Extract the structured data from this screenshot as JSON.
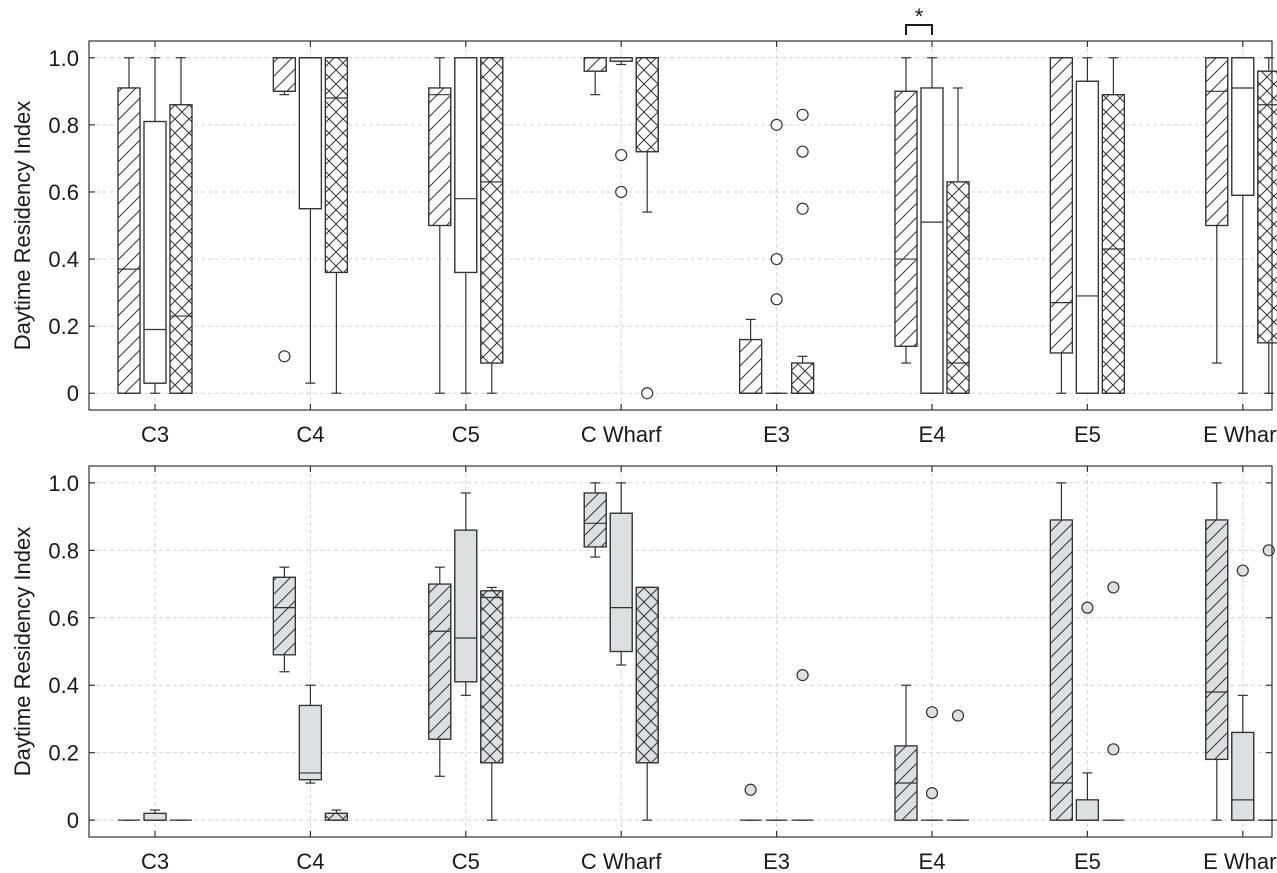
{
  "chart_data": [
    {
      "type": "box",
      "panel": "top",
      "fill": "#ffffff",
      "ylabel": "Daytime Residency Index",
      "ylim": [
        -0.05,
        1.05
      ],
      "yticks": [
        0,
        0.2,
        0.4,
        0.6,
        0.8,
        1.0
      ],
      "ytick_labels": [
        "0",
        "0.2",
        "0.4",
        "0.6",
        "0.8",
        "1.0"
      ],
      "categories": [
        "C3",
        "C4",
        "C5",
        "C Wharf",
        "E3",
        "E4",
        "E5",
        "E Wharf"
      ],
      "grid": true,
      "series_patterns": [
        "diagonal-hatch",
        "plain",
        "crosshatch"
      ],
      "significance": [
        {
          "category": "E4",
          "from_series": 0,
          "to_series": 1,
          "label": "*"
        }
      ],
      "groups": [
        {
          "category": "C3",
          "boxes": [
            {
              "whislo": 0,
              "q1": 0,
              "med": 0.37,
              "q3": 0.91,
              "whishi": 1.0,
              "fliers": []
            },
            {
              "whislo": 0,
              "q1": 0.03,
              "med": 0.19,
              "q3": 0.81,
              "whishi": 1.0,
              "fliers": []
            },
            {
              "whislo": 0,
              "q1": 0,
              "med": 0.23,
              "q3": 0.86,
              "whishi": 1.0,
              "fliers": []
            }
          ]
        },
        {
          "category": "C4",
          "boxes": [
            {
              "whislo": 0.89,
              "q1": 0.9,
              "med": 0.9,
              "q3": 1.0,
              "whishi": 1.0,
              "fliers": [
                0.11
              ]
            },
            {
              "whislo": 0.03,
              "q1": 0.55,
              "med": 1.0,
              "q3": 1.0,
              "whishi": 1.0,
              "fliers": []
            },
            {
              "whislo": 0,
              "q1": 0.36,
              "med": 0.88,
              "q3": 1.0,
              "whishi": 1.0,
              "fliers": []
            }
          ]
        },
        {
          "category": "C5",
          "boxes": [
            {
              "whislo": 0,
              "q1": 0.5,
              "med": 0.89,
              "q3": 0.91,
              "whishi": 1.0,
              "fliers": []
            },
            {
              "whislo": 0,
              "q1": 0.36,
              "med": 0.58,
              "q3": 1.0,
              "whishi": 1.0,
              "fliers": []
            },
            {
              "whislo": 0,
              "q1": 0.09,
              "med": 0.63,
              "q3": 1.0,
              "whishi": 1.0,
              "fliers": []
            }
          ]
        },
        {
          "category": "C Wharf",
          "boxes": [
            {
              "whislo": 0.89,
              "q1": 0.96,
              "med": 1.0,
              "q3": 1.0,
              "whishi": 1.0,
              "fliers": []
            },
            {
              "whislo": 0.98,
              "q1": 0.99,
              "med": 0.99,
              "q3": 1.0,
              "whishi": 1.0,
              "fliers": [
                0.71,
                0.6
              ]
            },
            {
              "whislo": 0.54,
              "q1": 0.72,
              "med": 1.0,
              "q3": 1.0,
              "whishi": 1.0,
              "fliers": [
                0
              ]
            }
          ]
        },
        {
          "category": "E3",
          "boxes": [
            {
              "whislo": 0,
              "q1": 0,
              "med": 0,
              "q3": 0.16,
              "whishi": 0.22,
              "fliers": []
            },
            {
              "whislo": 0,
              "q1": 0,
              "med": 0,
              "q3": 0,
              "whishi": 0,
              "fliers": [
                0.8,
                0.4,
                0.28
              ]
            },
            {
              "whislo": 0,
              "q1": 0,
              "med": 0,
              "q3": 0.09,
              "whishi": 0.11,
              "fliers": [
                0.83,
                0.72,
                0.55
              ]
            }
          ]
        },
        {
          "category": "E4",
          "boxes": [
            {
              "whislo": 0.09,
              "q1": 0.14,
              "med": 0.4,
              "q3": 0.9,
              "whishi": 1.0,
              "fliers": []
            },
            {
              "whislo": 0,
              "q1": 0,
              "med": 0.51,
              "q3": 0.91,
              "whishi": 1.0,
              "fliers": []
            },
            {
              "whislo": 0,
              "q1": 0,
              "med": 0.09,
              "q3": 0.63,
              "whishi": 0.91,
              "fliers": []
            }
          ]
        },
        {
          "category": "E5",
          "boxes": [
            {
              "whislo": 0,
              "q1": 0.12,
              "med": 0.27,
              "q3": 1.0,
              "whishi": 1.0,
              "fliers": []
            },
            {
              "whislo": 0,
              "q1": 0,
              "med": 0.29,
              "q3": 0.93,
              "whishi": 1.0,
              "fliers": []
            },
            {
              "whislo": 0,
              "q1": 0,
              "med": 0.43,
              "q3": 0.89,
              "whishi": 1.0,
              "fliers": []
            }
          ]
        },
        {
          "category": "E Wharf",
          "boxes": [
            {
              "whislo": 0.09,
              "q1": 0.5,
              "med": 0.9,
              "q3": 1.0,
              "whishi": 1.0,
              "fliers": []
            },
            {
              "whislo": 0,
              "q1": 0.59,
              "med": 0.91,
              "q3": 1.0,
              "whishi": 1.0,
              "fliers": []
            },
            {
              "whislo": 0,
              "q1": 0.15,
              "med": 0.86,
              "q3": 0.96,
              "whishi": 1.0,
              "fliers": []
            }
          ]
        }
      ]
    },
    {
      "type": "box",
      "panel": "bottom",
      "fill": "#dddfe2",
      "ylabel": "Daytime Residency Index",
      "ylim": [
        -0.05,
        1.05
      ],
      "yticks": [
        0,
        0.2,
        0.4,
        0.6,
        0.8,
        1.0
      ],
      "ytick_labels": [
        "0",
        "0.2",
        "0.4",
        "0.6",
        "0.8",
        "1.0"
      ],
      "categories": [
        "C3",
        "C4",
        "C5",
        "C Wharf",
        "E3",
        "E4",
        "E5",
        "E Wharf"
      ],
      "grid": true,
      "series_patterns": [
        "diagonal-hatch",
        "plain",
        "crosshatch"
      ],
      "significance": [],
      "groups": [
        {
          "category": "C3",
          "boxes": [
            {
              "whislo": 0,
              "q1": 0,
              "med": 0,
              "q3": 0,
              "whishi": 0,
              "fliers": []
            },
            {
              "whislo": 0,
              "q1": 0,
              "med": 0,
              "q3": 0.02,
              "whishi": 0.03,
              "fliers": []
            },
            {
              "whislo": 0,
              "q1": 0,
              "med": 0,
              "q3": 0,
              "whishi": 0,
              "fliers": []
            }
          ]
        },
        {
          "category": "C4",
          "boxes": [
            {
              "whislo": 0.44,
              "q1": 0.49,
              "med": 0.63,
              "q3": 0.72,
              "whishi": 0.75,
              "fliers": []
            },
            {
              "whislo": 0.11,
              "q1": 0.12,
              "med": 0.14,
              "q3": 0.34,
              "whishi": 0.4,
              "fliers": []
            },
            {
              "whislo": 0,
              "q1": 0,
              "med": 0.02,
              "q3": 0.02,
              "whishi": 0.03,
              "fliers": []
            }
          ]
        },
        {
          "category": "C5",
          "boxes": [
            {
              "whislo": 0.13,
              "q1": 0.24,
              "med": 0.56,
              "q3": 0.7,
              "whishi": 0.75,
              "fliers": []
            },
            {
              "whislo": 0.37,
              "q1": 0.41,
              "med": 0.54,
              "q3": 0.86,
              "whishi": 0.97,
              "fliers": []
            },
            {
              "whislo": 0,
              "q1": 0.17,
              "med": 0.66,
              "q3": 0.68,
              "whishi": 0.69,
              "fliers": []
            }
          ]
        },
        {
          "category": "C Wharf",
          "boxes": [
            {
              "whislo": 0.78,
              "q1": 0.81,
              "med": 0.88,
              "q3": 0.97,
              "whishi": 1.0,
              "fliers": []
            },
            {
              "whislo": 0.46,
              "q1": 0.5,
              "med": 0.63,
              "q3": 0.91,
              "whishi": 1.0,
              "fliers": []
            },
            {
              "whislo": 0,
              "q1": 0.17,
              "med": 0.69,
              "q3": 0.69,
              "whishi": 0.69,
              "fliers": []
            }
          ]
        },
        {
          "category": "E3",
          "boxes": [
            {
              "whislo": 0,
              "q1": 0,
              "med": 0,
              "q3": 0,
              "whishi": 0,
              "fliers": [
                0.09
              ]
            },
            {
              "whislo": 0,
              "q1": 0,
              "med": 0,
              "q3": 0,
              "whishi": 0,
              "fliers": []
            },
            {
              "whislo": 0,
              "q1": 0,
              "med": 0,
              "q3": 0,
              "whishi": 0,
              "fliers": [
                0.43
              ]
            }
          ]
        },
        {
          "category": "E4",
          "boxes": [
            {
              "whislo": 0,
              "q1": 0,
              "med": 0.11,
              "q3": 0.22,
              "whishi": 0.4,
              "fliers": []
            },
            {
              "whislo": 0,
              "q1": 0,
              "med": 0,
              "q3": 0,
              "whishi": 0,
              "fliers": [
                0.32,
                0.08
              ]
            },
            {
              "whislo": 0,
              "q1": 0,
              "med": 0,
              "q3": 0,
              "whishi": 0,
              "fliers": [
                0.31
              ]
            }
          ]
        },
        {
          "category": "E5",
          "boxes": [
            {
              "whislo": 0,
              "q1": 0,
              "med": 0.11,
              "q3": 0.89,
              "whishi": 1.0,
              "fliers": []
            },
            {
              "whislo": 0,
              "q1": 0,
              "med": 0,
              "q3": 0.06,
              "whishi": 0.14,
              "fliers": [
                0.63
              ]
            },
            {
              "whislo": 0,
              "q1": 0,
              "med": 0,
              "q3": 0,
              "whishi": 0,
              "fliers": [
                0.69,
                0.21
              ]
            }
          ]
        },
        {
          "category": "E Wharf",
          "boxes": [
            {
              "whislo": 0,
              "q1": 0.18,
              "med": 0.38,
              "q3": 0.89,
              "whishi": 1.0,
              "fliers": []
            },
            {
              "whislo": 0,
              "q1": 0,
              "med": 0.06,
              "q3": 0.26,
              "whishi": 0.37,
              "fliers": [
                0.74
              ]
            },
            {
              "whislo": 0,
              "q1": 0,
              "med": 0,
              "q3": 0,
              "whishi": 0,
              "fliers": [
                0.8
              ]
            }
          ]
        }
      ]
    }
  ]
}
